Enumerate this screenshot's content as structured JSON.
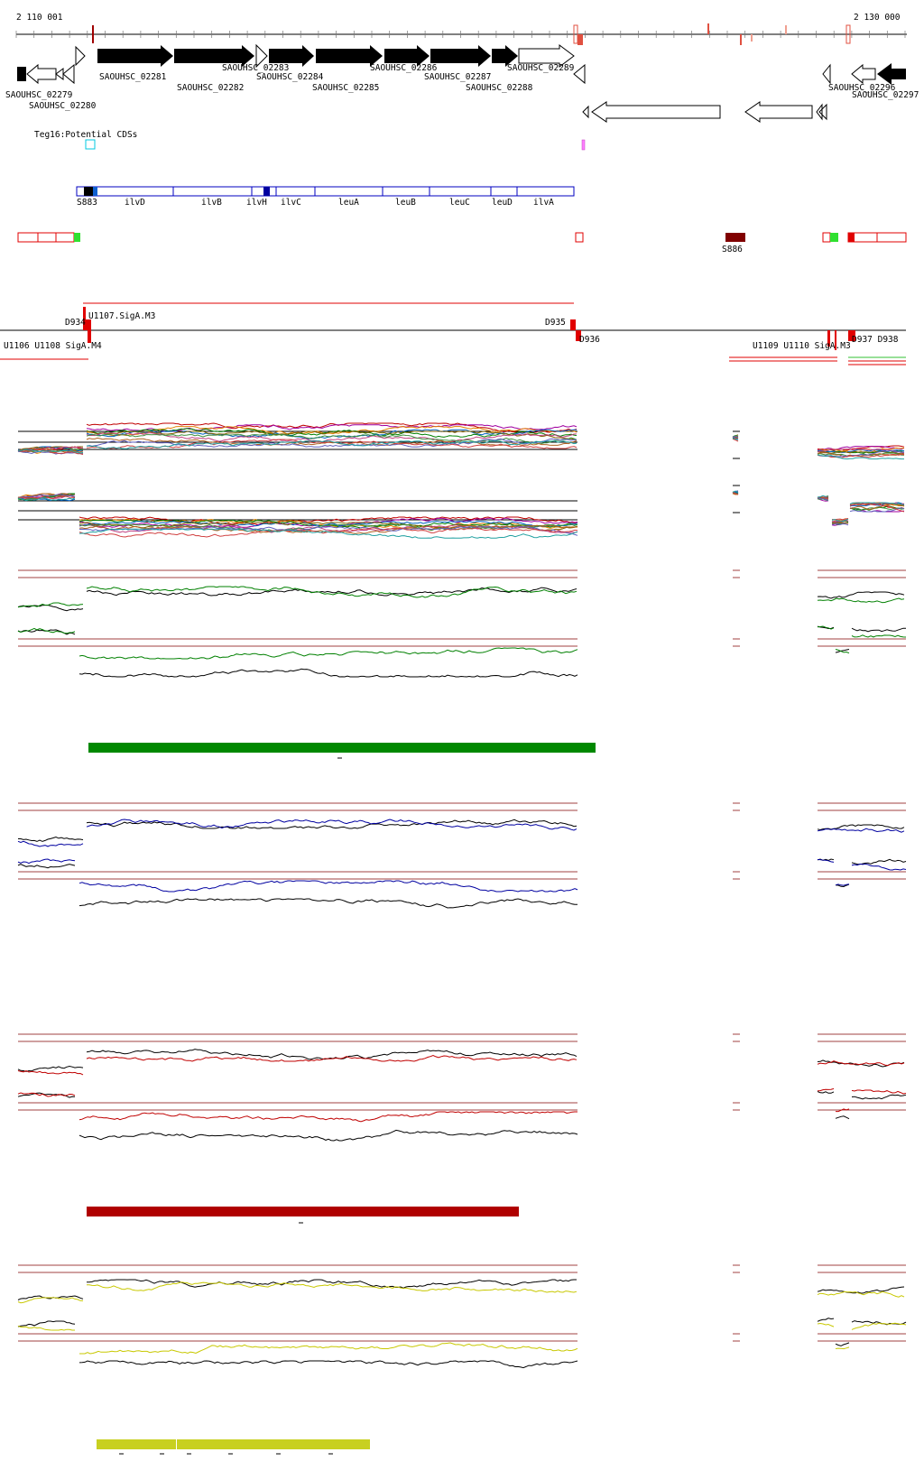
{
  "coords": {
    "start_label": "2 110 001",
    "end_label": "2 130 000"
  },
  "genes": [
    "SAOUHSC_02279",
    "SAOUHSC_02280",
    "SAOUHSC_02281",
    "SAOUHSC_02282",
    "SAOUHSC_02283",
    "SAOUHSC_02284",
    "SAOUHSC_02285",
    "SAOUHSC_02286",
    "SAOUHSC_02287",
    "SAOUHSC_02288",
    "SAOUHSC_02289",
    "SAOUHSC_02296",
    "SAOUHSC_02297"
  ],
  "potential_cds_label": "Teg16:Potential CDSs",
  "operon_genes": [
    "S883",
    "ilvD",
    "ilvB",
    "ilvH",
    "ilvC",
    "leuA",
    "leuB",
    "leuC",
    "leuD",
    "ilvA"
  ],
  "feature_labels": {
    "s886": "S886"
  },
  "promoter_labels": {
    "u1107": "U1107.SigA.M3",
    "d934": "D934",
    "d935": "D935",
    "d936": "D936",
    "left_overlap": "U1106 U1108 SigA.M4",
    "right_overlap": "U1109 U1110 SigA.M3",
    "d937": "D937 D938"
  },
  "colors": {
    "condition_1": "#008000",
    "condition_2": "#0000a0",
    "condition_3": "#c00000",
    "condition_4": "#c8c800",
    "reference": "#000000",
    "threshold": "#a04040"
  }
}
